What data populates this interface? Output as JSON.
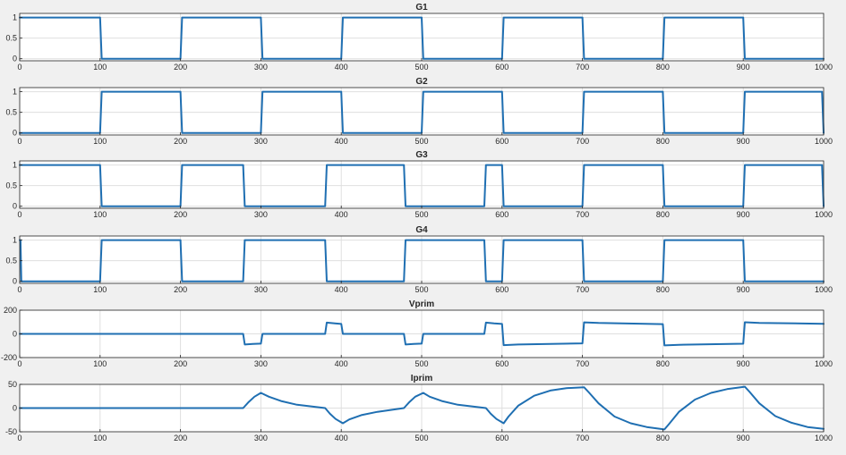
{
  "colors": {
    "background": "#f0f0f0",
    "axes": "#ffffff",
    "grid": "#dfdfdf",
    "frame": "#262626",
    "line": "#1f6fb2",
    "text": "#262626"
  },
  "chart_data": [
    {
      "type": "line",
      "title": "G1",
      "xlim": [
        0,
        1000
      ],
      "ylim": [
        -0.05,
        1.1
      ],
      "xticks": [
        0,
        100,
        200,
        300,
        400,
        500,
        600,
        700,
        800,
        900,
        1000
      ],
      "yticks": [
        0,
        0.5,
        1
      ],
      "ytick_labels": [
        "0",
        "0.5",
        "1"
      ],
      "grid": true,
      "series": [
        {
          "x": [
            0,
            100,
            102,
            200,
            202,
            300,
            302,
            400,
            402,
            500,
            502,
            600,
            602,
            700,
            702,
            800,
            802,
            900,
            902,
            1000
          ],
          "y": [
            1,
            1,
            0,
            0,
            1,
            1,
            0,
            0,
            1,
            1,
            0,
            0,
            1,
            1,
            0,
            0,
            1,
            1,
            0,
            0
          ]
        }
      ]
    },
    {
      "type": "line",
      "title": "G2",
      "xlim": [
        0,
        1000
      ],
      "ylim": [
        -0.05,
        1.1
      ],
      "xticks": [
        0,
        100,
        200,
        300,
        400,
        500,
        600,
        700,
        800,
        900,
        1000
      ],
      "yticks": [
        0,
        0.5,
        1
      ],
      "ytick_labels": [
        "0",
        "0.5",
        "1"
      ],
      "grid": true,
      "series": [
        {
          "x": [
            0,
            100,
            102,
            200,
            202,
            300,
            302,
            400,
            402,
            500,
            502,
            600,
            602,
            700,
            702,
            800,
            802,
            900,
            902,
            998,
            1000
          ],
          "y": [
            0,
            0,
            1,
            1,
            0,
            0,
            1,
            1,
            0,
            0,
            1,
            1,
            0,
            0,
            1,
            1,
            0,
            0,
            1,
            1,
            0
          ]
        }
      ]
    },
    {
      "type": "line",
      "title": "G3",
      "xlim": [
        0,
        1000
      ],
      "ylim": [
        -0.05,
        1.1
      ],
      "xticks": [
        0,
        100,
        200,
        300,
        400,
        500,
        600,
        700,
        800,
        900,
        1000
      ],
      "yticks": [
        0,
        0.5,
        1
      ],
      "ytick_labels": [
        "0",
        "0.5",
        "1"
      ],
      "grid": true,
      "series": [
        {
          "x": [
            0,
            100,
            102,
            200,
            202,
            278,
            280,
            380,
            382,
            478,
            480,
            578,
            580,
            600,
            602,
            700,
            702,
            800,
            802,
            900,
            902,
            998,
            1000
          ],
          "y": [
            1,
            1,
            0,
            0,
            1,
            1,
            0,
            0,
            1,
            1,
            0,
            0,
            1,
            1,
            0,
            0,
            1,
            1,
            0,
            0,
            1,
            1,
            0
          ]
        }
      ]
    },
    {
      "type": "line",
      "title": "G4",
      "xlim": [
        0,
        1000
      ],
      "ylim": [
        -0.05,
        1.1
      ],
      "xticks": [
        0,
        100,
        200,
        300,
        400,
        500,
        600,
        700,
        800,
        900,
        1000
      ],
      "yticks": [
        0,
        0.5,
        1
      ],
      "ytick_labels": [
        "0",
        "0.5",
        "1"
      ],
      "grid": true,
      "series": [
        {
          "x": [
            0,
            1,
            2,
            100,
            102,
            200,
            202,
            278,
            280,
            380,
            382,
            478,
            480,
            578,
            580,
            600,
            602,
            700,
            702,
            800,
            802,
            900,
            902,
            1000
          ],
          "y": [
            1,
            1,
            0,
            0,
            1,
            1,
            0,
            0,
            1,
            1,
            0,
            0,
            1,
            1,
            0,
            0,
            1,
            1,
            0,
            0,
            1,
            1,
            0,
            0
          ]
        }
      ]
    },
    {
      "type": "line",
      "title": "Vprim",
      "xlim": [
        0,
        1000
      ],
      "ylim": [
        -200,
        200
      ],
      "xticks": [
        0,
        100,
        200,
        300,
        400,
        500,
        600,
        700,
        800,
        900,
        1000
      ],
      "yticks": [
        -200,
        0,
        200
      ],
      "ytick_labels": [
        "-200",
        "0",
        "200"
      ],
      "grid": true,
      "series": [
        {
          "x": [
            0,
            278,
            280,
            290,
            300,
            302,
            320,
            380,
            382,
            392,
            400,
            402,
            420,
            478,
            480,
            490,
            500,
            502,
            520,
            578,
            580,
            590,
            600,
            602,
            620,
            700,
            702,
            720,
            800,
            802,
            820,
            900,
            902,
            920,
            1000
          ],
          "y": [
            0,
            0,
            -90,
            -85,
            -82,
            0,
            0,
            0,
            95,
            88,
            84,
            0,
            0,
            0,
            -90,
            -85,
            -82,
            0,
            0,
            0,
            95,
            88,
            84,
            -95,
            -90,
            -80,
            97,
            92,
            82,
            -97,
            -92,
            -83,
            98,
            93,
            85
          ]
        }
      ]
    },
    {
      "type": "line",
      "title": "Iprim",
      "xlim": [
        0,
        1000
      ],
      "ylim": [
        -50,
        50
      ],
      "xticks": [
        0,
        100,
        200,
        300,
        400,
        500,
        600,
        700,
        800,
        900,
        1000
      ],
      "yticks": [
        -50,
        0,
        50
      ],
      "ytick_labels": [
        "-50",
        "0",
        "50"
      ],
      "grid": true,
      "series": [
        {
          "x": [
            0,
            278,
            285,
            292,
            300,
            310,
            325,
            345,
            380,
            386,
            393,
            402,
            410,
            425,
            445,
            478,
            485,
            492,
            502,
            510,
            525,
            545,
            580,
            586,
            593,
            602,
            608,
            620,
            640,
            660,
            680,
            702,
            708,
            720,
            740,
            760,
            780,
            802,
            808,
            820,
            840,
            860,
            880,
            902,
            908,
            920,
            940,
            960,
            980,
            1000
          ],
          "y": [
            0,
            0,
            13,
            24,
            32,
            24,
            15,
            7,
            0,
            -12,
            -23,
            -32,
            -24,
            -15,
            -8,
            0,
            13,
            24,
            32,
            24,
            15,
            7,
            0,
            -12,
            -23,
            -32,
            -18,
            5,
            26,
            37,
            42,
            44,
            33,
            10,
            -18,
            -32,
            -40,
            -45,
            -33,
            -8,
            18,
            32,
            40,
            45,
            34,
            10,
            -17,
            -31,
            -40,
            -44
          ]
        }
      ]
    }
  ]
}
